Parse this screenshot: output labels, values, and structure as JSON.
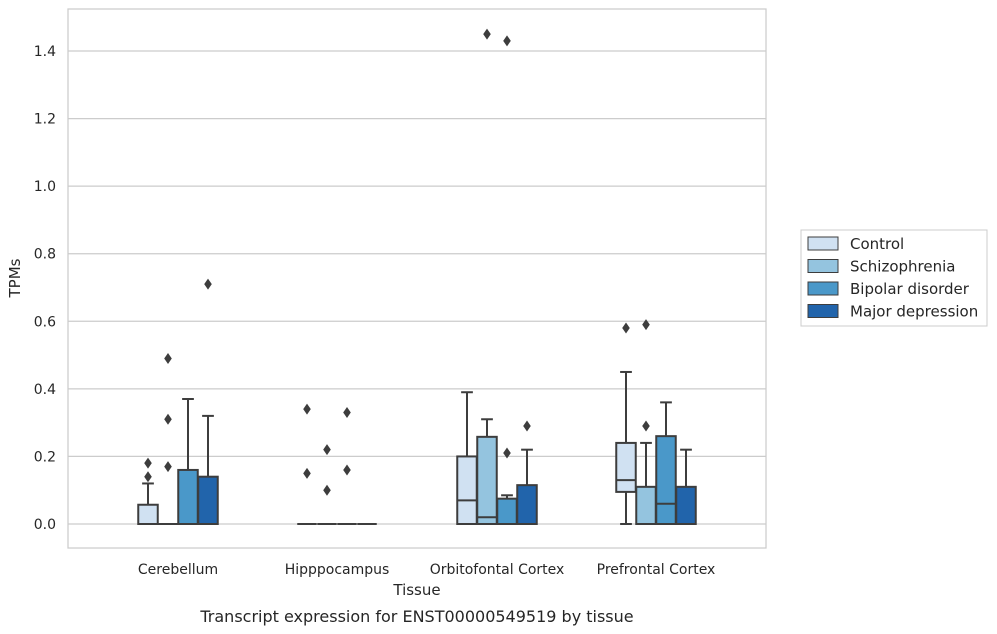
{
  "chart_data": {
    "type": "box",
    "caption": "Transcript expression for ENST00000549519 by tissue",
    "xlabel": "Tissue",
    "ylabel": "TPMs",
    "ylim": [
      -0.07,
      1.53
    ],
    "yticks": [
      "0.0",
      "0.2",
      "0.4",
      "0.6",
      "0.8",
      "1.0",
      "1.2",
      "1.4"
    ],
    "grid": "horizontal",
    "legend_position": "right",
    "categories": [
      "Cerebellum",
      "Hipppocampus",
      "Orbitofontal Cortex",
      "Prefrontal Cortex"
    ],
    "series": [
      {
        "name": "Control",
        "color": "#d0e1f2",
        "boxes": [
          {
            "q1": 0.0,
            "median": 0.0,
            "q3": 0.057,
            "whisker_low": 0.0,
            "whisker_high": 0.12,
            "outliers": [
              0.14,
              0.18
            ]
          },
          {
            "q1": 0.0,
            "median": 0.0,
            "q3": 0.0,
            "whisker_low": 0.0,
            "whisker_high": 0.0,
            "outliers": [
              0.15,
              0.34
            ]
          },
          {
            "q1": 0.0,
            "median": 0.07,
            "q3": 0.2,
            "whisker_low": 0.0,
            "whisker_high": 0.39,
            "outliers": []
          },
          {
            "q1": 0.095,
            "median": 0.13,
            "q3": 0.24,
            "whisker_low": 0.0,
            "whisker_high": 0.45,
            "outliers": [
              0.58
            ]
          }
        ]
      },
      {
        "name": "Schizophrenia",
        "color": "#94c4df",
        "boxes": [
          {
            "q1": 0.0,
            "median": 0.0,
            "q3": 0.0,
            "whisker_low": 0.0,
            "whisker_high": 0.0,
            "outliers": [
              0.17,
              0.31,
              0.49
            ]
          },
          {
            "q1": 0.0,
            "median": 0.0,
            "q3": 0.0,
            "whisker_low": 0.0,
            "whisker_high": 0.0,
            "outliers": [
              0.1,
              0.22
            ]
          },
          {
            "q1": 0.0,
            "median": 0.02,
            "q3": 0.258,
            "whisker_low": 0.0,
            "whisker_high": 0.31,
            "outliers": [
              1.45
            ]
          },
          {
            "q1": 0.0,
            "median": 0.0,
            "q3": 0.11,
            "whisker_low": 0.0,
            "whisker_high": 0.24,
            "outliers": [
              0.29,
              0.59
            ]
          }
        ]
      },
      {
        "name": "Bipolar disorder",
        "color": "#4a98c9",
        "boxes": [
          {
            "q1": 0.0,
            "median": 0.0,
            "q3": 0.16,
            "whisker_low": 0.0,
            "whisker_high": 0.37,
            "outliers": []
          },
          {
            "q1": 0.0,
            "median": 0.0,
            "q3": 0.0,
            "whisker_low": 0.0,
            "whisker_high": 0.0,
            "outliers": [
              0.16,
              0.33
            ]
          },
          {
            "q1": 0.0,
            "median": 0.0,
            "q3": 0.075,
            "whisker_low": 0.0,
            "whisker_high": 0.085,
            "outliers": [
              0.21,
              1.43
            ]
          },
          {
            "q1": 0.0,
            "median": 0.06,
            "q3": 0.26,
            "whisker_low": 0.0,
            "whisker_high": 0.36,
            "outliers": []
          }
        ]
      },
      {
        "name": "Major depression",
        "color": "#2164ab",
        "boxes": [
          {
            "q1": 0.0,
            "median": 0.0,
            "q3": 0.14,
            "whisker_low": 0.0,
            "whisker_high": 0.32,
            "outliers": [
              0.71
            ]
          },
          {
            "q1": 0.0,
            "median": 0.0,
            "q3": 0.0,
            "whisker_low": 0.0,
            "whisker_high": 0.0,
            "outliers": []
          },
          {
            "q1": 0.0,
            "median": 0.0,
            "q3": 0.115,
            "whisker_low": 0.0,
            "whisker_high": 0.22,
            "outliers": [
              0.29
            ]
          },
          {
            "q1": 0.0,
            "median": 0.0,
            "q3": 0.11,
            "whisker_low": 0.0,
            "whisker_high": 0.22,
            "outliers": []
          }
        ]
      }
    ]
  }
}
